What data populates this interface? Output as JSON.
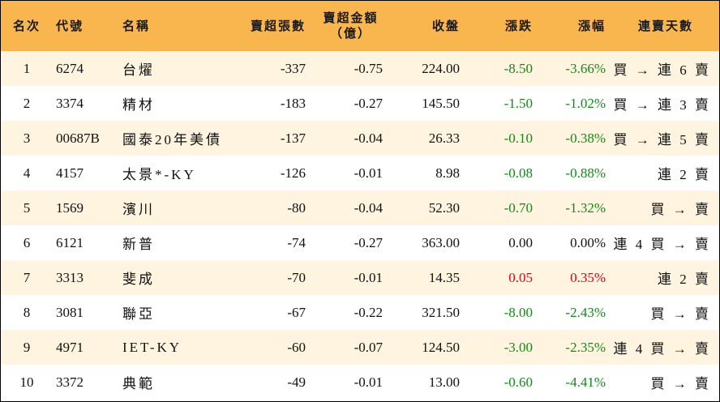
{
  "headers": {
    "rank": "名次",
    "code": "代號",
    "name": "名稱",
    "oversold_shares": "賣超張數",
    "oversold_amount_line1": "賣超金額",
    "oversold_amount_line2": "（億）",
    "close": "收盤",
    "change": "漲跌",
    "change_pct": "漲幅",
    "streak": "連賣天數"
  },
  "colors": {
    "header_bg": "#f9b64f",
    "row_alt_bg": "#fef4df",
    "up": "#e0001b",
    "down": "#138a18"
  },
  "rows": [
    {
      "rank": "1",
      "code": "6274",
      "name": "台燿",
      "shares": "-337",
      "amount": "-0.75",
      "close": "224.00",
      "change": "-8.50",
      "pct": "-3.66%",
      "trend": "down",
      "streak": "買 → 連 6 賣"
    },
    {
      "rank": "2",
      "code": "3374",
      "name": "精材",
      "shares": "-183",
      "amount": "-0.27",
      "close": "145.50",
      "change": "-1.50",
      "pct": "-1.02%",
      "trend": "down",
      "streak": "買 → 連 3 賣"
    },
    {
      "rank": "3",
      "code": "00687B",
      "name": "國泰20年美債",
      "shares": "-137",
      "amount": "-0.04",
      "close": "26.33",
      "change": "-0.10",
      "pct": "-0.38%",
      "trend": "down",
      "streak": "買 → 連 5 賣"
    },
    {
      "rank": "4",
      "code": "4157",
      "name": "太景*-KY",
      "shares": "-126",
      "amount": "-0.01",
      "close": "8.98",
      "change": "-0.08",
      "pct": "-0.88%",
      "trend": "down",
      "streak": "連 2 賣"
    },
    {
      "rank": "5",
      "code": "1569",
      "name": "濱川",
      "shares": "-80",
      "amount": "-0.04",
      "close": "52.30",
      "change": "-0.70",
      "pct": "-1.32%",
      "trend": "down",
      "streak": "買 → 賣"
    },
    {
      "rank": "6",
      "code": "6121",
      "name": "新普",
      "shares": "-74",
      "amount": "-0.27",
      "close": "363.00",
      "change": "0.00",
      "pct": "0.00%",
      "trend": "flat",
      "streak": "連 4 買 → 賣"
    },
    {
      "rank": "7",
      "code": "3313",
      "name": "斐成",
      "shares": "-70",
      "amount": "-0.01",
      "close": "14.35",
      "change": "0.05",
      "pct": "0.35%",
      "trend": "up",
      "streak": "連 2 賣"
    },
    {
      "rank": "8",
      "code": "3081",
      "name": "聯亞",
      "shares": "-67",
      "amount": "-0.22",
      "close": "321.50",
      "change": "-8.00",
      "pct": "-2.43%",
      "trend": "down",
      "streak": "買 → 賣"
    },
    {
      "rank": "9",
      "code": "4971",
      "name": "IET-KY",
      "shares": "-60",
      "amount": "-0.07",
      "close": "124.50",
      "change": "-3.00",
      "pct": "-2.35%",
      "trend": "down",
      "streak": "連 4 買 → 賣"
    },
    {
      "rank": "10",
      "code": "3372",
      "name": "典範",
      "shares": "-49",
      "amount": "-0.01",
      "close": "13.00",
      "change": "-0.60",
      "pct": "-4.41%",
      "trend": "down",
      "streak": "買 → 賣"
    }
  ]
}
